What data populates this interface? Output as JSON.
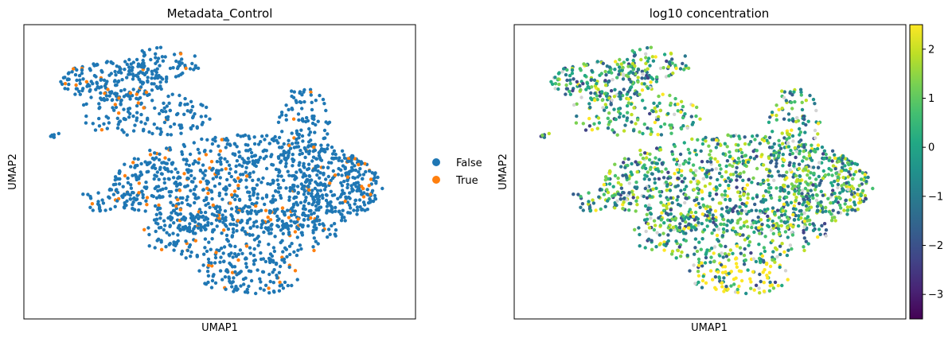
{
  "chart_data": [
    {
      "type": "scatter",
      "title": "Metadata_Control",
      "xlabel": "UMAP1",
      "ylabel": "UMAP2",
      "legend": {
        "placement": "right",
        "entries": [
          {
            "label": "False",
            "color": "#1f77b4"
          },
          {
            "label": "True",
            "color": "#ff7f0e"
          }
        ]
      },
      "grid": false
    },
    {
      "type": "scatter",
      "title": "log10 concentration",
      "xlabel": "UMAP1",
      "ylabel": "UMAP2",
      "colorbar": {
        "colormap": "viridis",
        "range": [
          -3.5,
          2.5
        ],
        "ticks": [
          "2",
          "1",
          "0",
          "−1",
          "−2",
          "−3"
        ],
        "tick_values": [
          2,
          1,
          0,
          -1,
          -2,
          -3
        ],
        "missing_color": "#d3d3d3"
      },
      "grid": false
    }
  ]
}
